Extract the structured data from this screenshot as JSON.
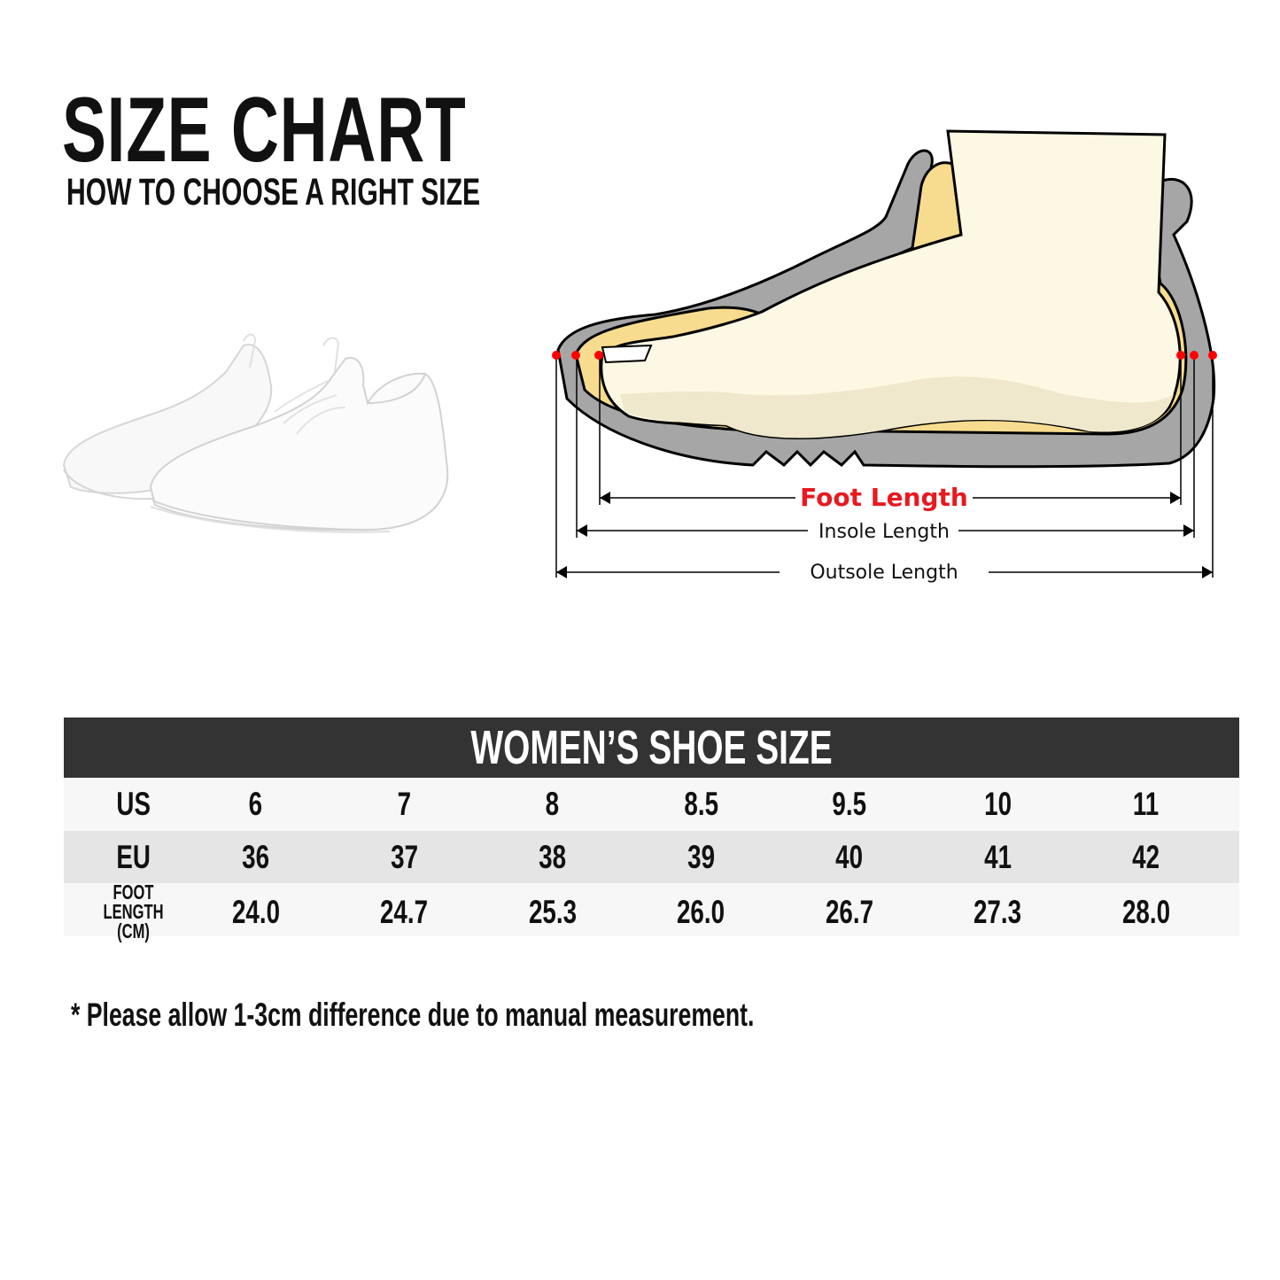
{
  "header": {
    "title": "SIZE CHART",
    "subtitle": "HOW TO CHOOSE A RIGHT SIZE"
  },
  "diagram": {
    "foot_length_label": "Foot Length",
    "insole_length_label": "Insole Length",
    "outsole_length_label": "Outsole Length",
    "colors": {
      "foot_length": "#e8191f",
      "shoe": "#a6a6a6",
      "foot": "#fdf8e3",
      "insole": "#f7dc8f",
      "marker": "#ff0000"
    }
  },
  "product_image": {
    "description_icon": "white-sneakers-image"
  },
  "table": {
    "title": "WOMEN’S SHOE SIZE",
    "rows": [
      {
        "label": "US",
        "values": [
          "6",
          "7",
          "8",
          "8.5",
          "9.5",
          "10",
          "11"
        ]
      },
      {
        "label": "EU",
        "values": [
          "36",
          "37",
          "38",
          "39",
          "40",
          "41",
          "42"
        ]
      },
      {
        "label_line1": "FOOT",
        "label_line2": "LENGTH (CM)",
        "values": [
          "24.0",
          "24.7",
          "25.3",
          "26.0",
          "26.7",
          "27.3",
          "28.0"
        ]
      }
    ]
  },
  "note": "* Please allow 1-3cm difference due to manual measurement."
}
